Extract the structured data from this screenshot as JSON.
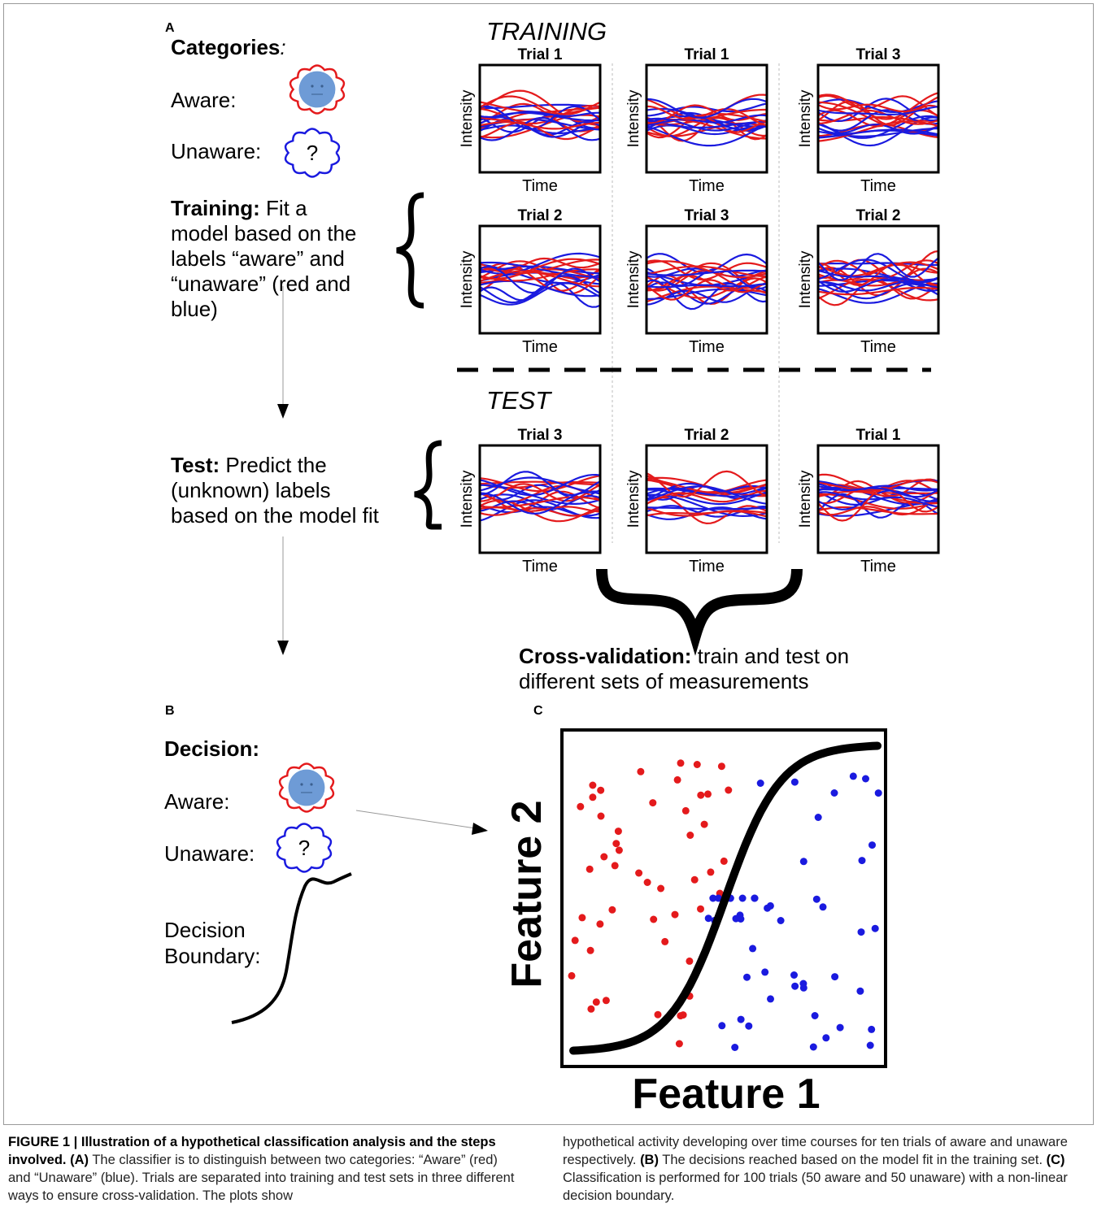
{
  "panels": {
    "a": "A",
    "b": "B",
    "c": "C"
  },
  "left": {
    "categories_label": "Categories",
    "categories_colon": ":",
    "aware_label": "Aware:",
    "unaware_label": "Unaware:",
    "unknown_symbol": "?",
    "training_bold": "Training:",
    "training_lines": [
      " Fit a",
      "model based on the",
      "labels “aware” and",
      "“unaware” (red and",
      "blue)"
    ],
    "test_bold": "Test:",
    "test_lines": [
      " Predict the",
      "(unknown) labels",
      "based on the model fit"
    ]
  },
  "right": {
    "training_heading": "TRAINING",
    "test_heading": "TEST",
    "cv_bold": "Cross-validation:",
    "cv_lines": [
      " train and test on",
      "different sets of measurements"
    ]
  },
  "plots": [
    {
      "title": "Trial 1",
      "seed": 11
    },
    {
      "title": "Trial 1",
      "seed": 12
    },
    {
      "title": "Trial 3",
      "seed": 13
    },
    {
      "title": "Trial 2",
      "seed": 21
    },
    {
      "title": "Trial 3",
      "seed": 22
    },
    {
      "title": "Trial 2",
      "seed": 23
    },
    {
      "title": "Trial 3",
      "seed": 31
    },
    {
      "title": "Trial 2",
      "seed": 32
    },
    {
      "title": "Trial 1",
      "seed": 33
    }
  ],
  "plot_axes": {
    "ylabel": "Intensity",
    "xlabel": "Time"
  },
  "decision": {
    "heading": "Decision:",
    "aware_label": "Aware:",
    "unaware_label": "Unaware:",
    "unknown_symbol": "?",
    "boundary_lines": [
      "Decision",
      "Boundary:"
    ]
  },
  "scatter": {
    "xlabel": "Feature 1",
    "ylabel": "Feature 2",
    "colors": {
      "aware": "#e41a1c",
      "unaware": "#1a1adf"
    }
  },
  "colors": {
    "aware": "#e41a1c",
    "unaware": "#1a1adf",
    "face": "#6e9bd6"
  },
  "caption": {
    "figure_label": "FIGURE 1 | Illustration of a hypothetical classification analysis and the steps involved.",
    "a_ref": "(A)",
    "a_text": " The classifier is to distinguish between two categories: “Aware” (red) and “Unaware” (blue). Trials are separated into training and test sets in three different ways to ensure cross-validation. The plots show",
    "right_text": "hypothetical activity developing over time courses for ten trials of aware and unaware respectively. ",
    "b_ref": "(B)",
    "b_text": " The decisions reached based on the model fit in the training set. ",
    "c_ref": "(C)",
    "c_text": " Classification is performed for 100 trials (50 aware and 50 unaware) with a non-linear decision boundary."
  }
}
